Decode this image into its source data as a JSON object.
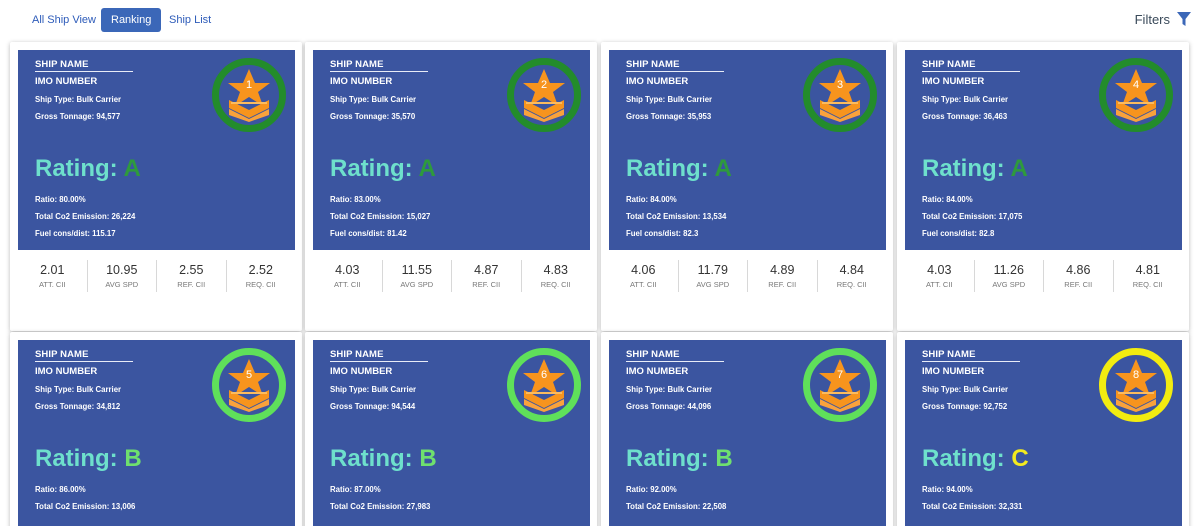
{
  "nav": {
    "tabs": [
      {
        "label": "All Ship View",
        "active": false
      },
      {
        "label": "Ranking",
        "active": true
      },
      {
        "label": "Ship List",
        "active": false
      }
    ],
    "filters_label": "Filters",
    "filters_icon": "filter-icon"
  },
  "colors": {
    "panel": "#3b55a0",
    "rating_label": "#6ee0cc",
    "grade_A": "#2e9a3d",
    "grade_B": "#6fe06e",
    "grade_C": "#f3ea1e",
    "ring_A": "#238c2b",
    "ring_B": "#5fe05a",
    "ring_C": "#f2ec10"
  },
  "rating_label": "Rating:",
  "stat_labels": [
    "ATT. CII",
    "AVG SPD",
    "REF. CII",
    "REQ. CII"
  ],
  "ships": [
    {
      "rank": "1",
      "name_label": "SHIP NAME",
      "imo_label": "IMO NUMBER",
      "type": "Ship Type: Bulk Carrier",
      "gross": "Gross Tonnage: 94,577",
      "grade": "A",
      "ratio": "Ratio: 80.00%",
      "co2": "Total Co2 Emission: 26,224",
      "fuel": "Fuel cons/dist: 115.17",
      "stats": [
        "2.01",
        "10.95",
        "2.55",
        "2.52"
      ]
    },
    {
      "rank": "2",
      "name_label": "SHIP NAME",
      "imo_label": "IMO NUMBER",
      "type": "Ship Type: Bulk Carrier",
      "gross": "Gross Tonnage: 35,570",
      "grade": "A",
      "ratio": "Ratio: 83.00%",
      "co2": "Total Co2 Emission: 15,027",
      "fuel": "Fuel cons/dist: 81.42",
      "stats": [
        "4.03",
        "11.55",
        "4.87",
        "4.83"
      ]
    },
    {
      "rank": "3",
      "name_label": "SHIP NAME",
      "imo_label": "IMO NUMBER",
      "type": "Ship Type: Bulk Carrier",
      "gross": "Gross Tonnage: 35,953",
      "grade": "A",
      "ratio": "Ratio: 84.00%",
      "co2": "Total Co2 Emission: 13,534",
      "fuel": "Fuel cons/dist: 82.3",
      "stats": [
        "4.06",
        "11.79",
        "4.89",
        "4.84"
      ]
    },
    {
      "rank": "4",
      "name_label": "SHIP NAME",
      "imo_label": "IMO NUMBER",
      "type": "Ship Type: Bulk Carrier",
      "gross": "Gross Tonnage: 36,463",
      "grade": "A",
      "ratio": "Ratio: 84.00%",
      "co2": "Total Co2 Emission: 17,075",
      "fuel": "Fuel cons/dist: 82.8",
      "stats": [
        "4.03",
        "11.26",
        "4.86",
        "4.81"
      ]
    },
    {
      "rank": "5",
      "name_label": "SHIP NAME",
      "imo_label": "IMO NUMBER",
      "type": "Ship Type: Bulk Carrier",
      "gross": "Gross Tonnage: 34,812",
      "grade": "B",
      "ratio": "Ratio: 86.00%",
      "co2": "Total Co2 Emission: 13,006",
      "fuel": "",
      "stats": []
    },
    {
      "rank": "6",
      "name_label": "SHIP NAME",
      "imo_label": "IMO NUMBER",
      "type": "Ship Type: Bulk Carrier",
      "gross": "Gross Tonnage: 94,544",
      "grade": "B",
      "ratio": "Ratio: 87.00%",
      "co2": "Total Co2 Emission: 27,983",
      "fuel": "",
      "stats": []
    },
    {
      "rank": "7",
      "name_label": "SHIP NAME",
      "imo_label": "IMO NUMBER",
      "type": "Ship Type: Bulk Carrier",
      "gross": "Gross Tonnage: 44,096",
      "grade": "B",
      "ratio": "Ratio: 92.00%",
      "co2": "Total Co2 Emission: 22,508",
      "fuel": "",
      "stats": []
    },
    {
      "rank": "8",
      "name_label": "SHIP NAME",
      "imo_label": "IMO NUMBER",
      "type": "Ship Type: Bulk Carrier",
      "gross": "Gross Tonnage: 92,752",
      "grade": "C",
      "ratio": "Ratio: 94.00%",
      "co2": "Total Co2 Emission: 32,331",
      "fuel": "",
      "stats": []
    }
  ]
}
